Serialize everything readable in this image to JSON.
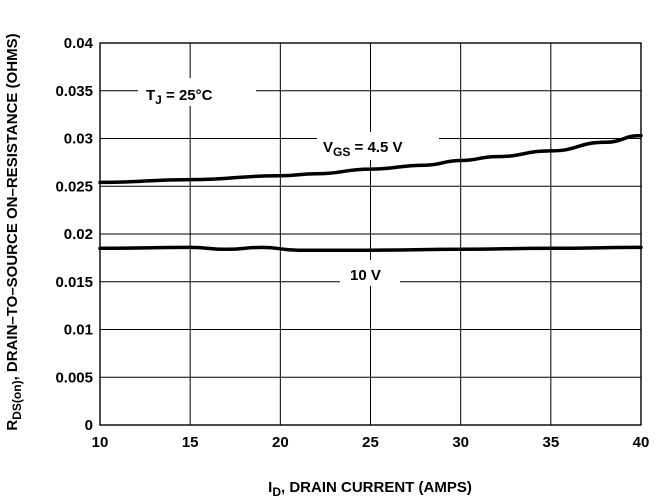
{
  "chart_data": {
    "type": "line",
    "xlabel": {
      "main": "I",
      "sub": "D",
      "rest": ", DRAIN CURRENT (AMPS)"
    },
    "ylabel": {
      "main": "R",
      "sub": "DS(on)",
      "rest": ", DRAIN–TO–SOURCE ON–RESISTANCE (OHMS)"
    },
    "xlim": [
      10,
      40
    ],
    "ylim": [
      0,
      0.04
    ],
    "x_ticks": [
      "10",
      "15",
      "20",
      "25",
      "30",
      "35",
      "40"
    ],
    "y_ticks": [
      "0",
      "0.005",
      "0.01",
      "0.015",
      "0.02",
      "0.025",
      "0.03",
      "0.035",
      "0.04"
    ],
    "grid": true,
    "series": [
      {
        "name": "VGS = 4.5 V",
        "x": [
          10,
          15,
          20,
          22,
          25,
          28,
          30,
          32,
          35,
          38,
          40
        ],
        "y": [
          0.0254,
          0.0257,
          0.0261,
          0.0263,
          0.0268,
          0.0272,
          0.0277,
          0.0281,
          0.0287,
          0.0296,
          0.0303
        ]
      },
      {
        "name": "10 V",
        "x": [
          10,
          15,
          17,
          19,
          21,
          25,
          30,
          35,
          40
        ],
        "y": [
          0.0185,
          0.0186,
          0.0184,
          0.0186,
          0.0183,
          0.0183,
          0.0184,
          0.0185,
          0.0186
        ]
      }
    ],
    "annotations": {
      "tj": {
        "main": "T",
        "sub": "J",
        "rest": " = 25°C"
      },
      "vgs": {
        "main": "V",
        "sub": "GS",
        "rest": " = 4.5 V"
      },
      "v10": "10 V"
    }
  }
}
